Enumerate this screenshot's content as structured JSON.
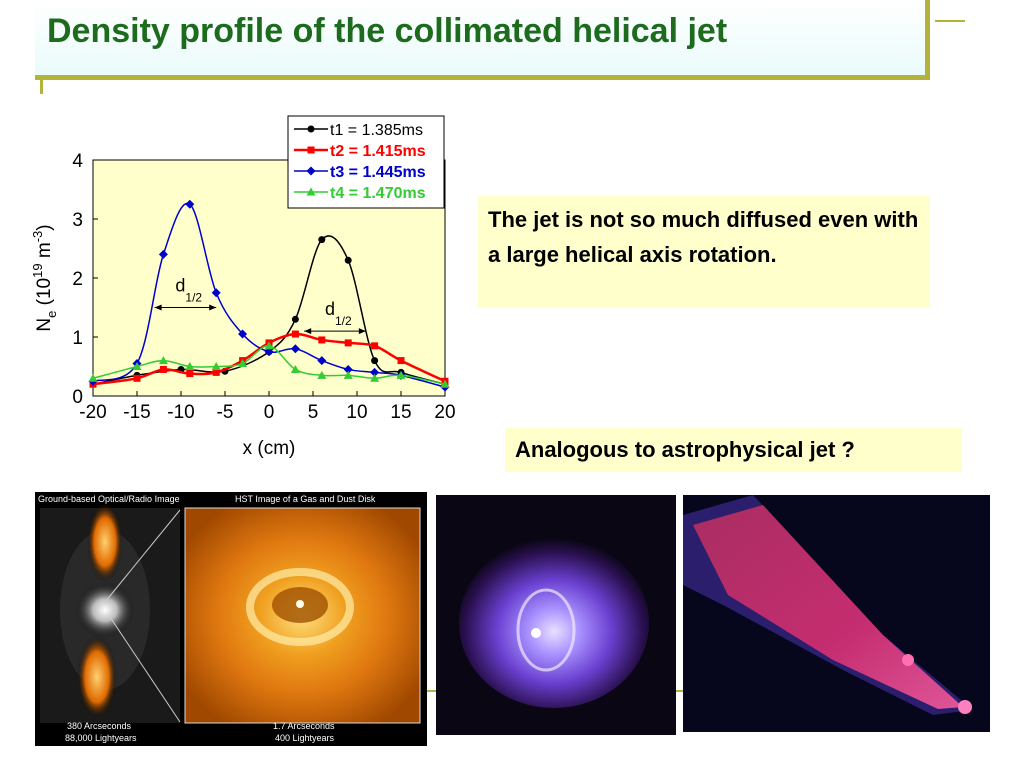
{
  "title": "Density profile of the collimated helical jet",
  "notes": {
    "text1": "The jet is not so much diffused even with a large helical axis rotation.",
    "text2": "Analogous to astrophysical jet ?"
  },
  "images": {
    "panel1_header": "Ground-based Optical/Radio Image",
    "panel2_header": "HST Image of a Gas and Dust Disk",
    "panel1_scale1": "380 Arcseconds",
    "panel1_scale2": "88,000 Lightyears",
    "panel2_scale1": "1.7 Arcseconds",
    "panel2_scale2": "400 Lightyears"
  },
  "chart_data": {
    "type": "line",
    "xlabel": "x (cm)",
    "ylabel": "N_e (10^19 m^-3)",
    "xlim": [
      -20,
      20
    ],
    "ylim": [
      0,
      4
    ],
    "xticks": [
      "-20",
      "-15",
      "-10",
      "-5",
      "0",
      "5",
      "10",
      "15",
      "20"
    ],
    "yticks": [
      "0",
      "1",
      "2",
      "3",
      "4"
    ],
    "legend_position": "top-right",
    "background": "#ffffcc",
    "annotations": [
      {
        "text": "d",
        "sub": "1/2",
        "x_from": -13,
        "x_to": -6,
        "y": 1.5
      },
      {
        "text": "d",
        "sub": "1/2",
        "x_from": 4,
        "x_to": 11,
        "y": 1.1
      }
    ],
    "series": [
      {
        "name": "t1 = 1.385ms",
        "color": "#000000",
        "marker": "circle",
        "x": [
          -20,
          -15,
          -10,
          -5,
          0,
          3,
          6,
          9,
          12,
          15,
          20
        ],
        "y": [
          0.2,
          0.35,
          0.45,
          0.42,
          0.75,
          1.3,
          2.65,
          2.3,
          0.6,
          0.4,
          0.2
        ]
      },
      {
        "name": "t2 = 1.415ms",
        "color": "#ff0000",
        "marker": "square",
        "x": [
          -20,
          -15,
          -12,
          -9,
          -6,
          -3,
          0,
          3,
          6,
          9,
          12,
          15,
          20
        ],
        "y": [
          0.2,
          0.3,
          0.45,
          0.38,
          0.4,
          0.6,
          0.9,
          1.05,
          0.95,
          0.9,
          0.85,
          0.6,
          0.25
        ]
      },
      {
        "name": "t3 = 1.445ms",
        "color": "#0000cc",
        "marker": "diamond",
        "x": [
          -20,
          -15,
          -12,
          -9,
          -6,
          -3,
          0,
          3,
          6,
          9,
          12,
          15,
          20
        ],
        "y": [
          0.25,
          0.55,
          2.4,
          3.25,
          1.75,
          1.05,
          0.75,
          0.8,
          0.6,
          0.45,
          0.4,
          0.35,
          0.15
        ]
      },
      {
        "name": "t4 = 1.470ms",
        "color": "#33cc33",
        "marker": "triangle",
        "x": [
          -20,
          -15,
          -12,
          -9,
          -6,
          -3,
          0,
          3,
          6,
          9,
          12,
          15,
          20
        ],
        "y": [
          0.3,
          0.5,
          0.6,
          0.5,
          0.5,
          0.55,
          0.85,
          0.45,
          0.35,
          0.35,
          0.3,
          0.35,
          0.2
        ]
      }
    ]
  }
}
